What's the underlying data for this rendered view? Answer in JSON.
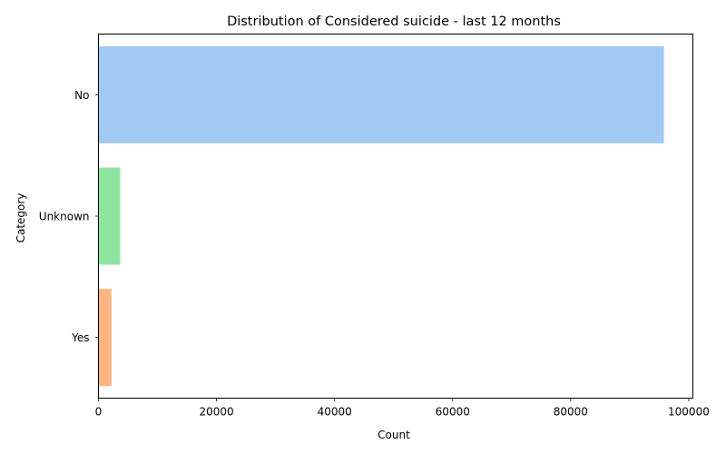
{
  "chart_data": {
    "type": "bar",
    "orientation": "horizontal",
    "title": "Distribution of Considered suicide - last 12 months",
    "xlabel": "Count",
    "ylabel": "Category",
    "categories": [
      "No",
      "Unknown",
      "Yes"
    ],
    "values": [
      95800,
      3700,
      2200
    ],
    "colors": [
      "#a1c9f4",
      "#8de5a1",
      "#ffb482"
    ],
    "xlim": [
      0,
      100700
    ],
    "xticks": [
      0,
      20000,
      40000,
      60000,
      80000,
      100000
    ],
    "xtick_labels": [
      "0",
      "20000",
      "40000",
      "60000",
      "80000",
      "100000"
    ],
    "grid": false,
    "legend": "none"
  }
}
